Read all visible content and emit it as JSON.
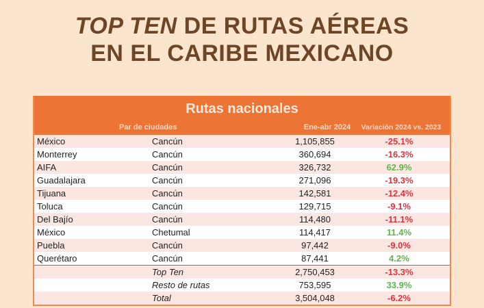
{
  "title": {
    "line1_italic": "TOP TEN",
    "line1_rest": " DE RUTAS AÉREAS",
    "line2": "EN EL CARIBE MEXICANO"
  },
  "table": {
    "heading": "Rutas nacionales",
    "columns": {
      "pair": "Par de ciudades",
      "period": "Ene-abr 2024",
      "variation": "Variación  2024 vs. 2023"
    },
    "colors": {
      "header": "#ec7434",
      "negative": "#e0323c",
      "positive": "#5fb548"
    },
    "rows": [
      {
        "origin": "México",
        "destination": "Cancún",
        "value": "1,105,855",
        "variation": "-25.1%"
      },
      {
        "origin": "Monterrey",
        "destination": "Cancún",
        "value": "360,694",
        "variation": "-16.3%"
      },
      {
        "origin": "AIFA",
        "destination": "Cancún",
        "value": "326,732",
        "variation": "62.9%"
      },
      {
        "origin": "Guadalajara",
        "destination": "Cancún",
        "value": "271,096",
        "variation": "-19.3%"
      },
      {
        "origin": "Tijuana",
        "destination": "Cancún",
        "value": "142,581",
        "variation": "-12.4%"
      },
      {
        "origin": "Toluca",
        "destination": "Cancún",
        "value": "129,715",
        "variation": "-9.1%"
      },
      {
        "origin": "Del Bajío",
        "destination": "Cancún",
        "value": "114,480",
        "variation": "-11.1%"
      },
      {
        "origin": "México",
        "destination": "Chetumal",
        "value": "114,417",
        "variation": "11.4%"
      },
      {
        "origin": "Puebla",
        "destination": "Cancún",
        "value": "97,442",
        "variation": "-9.0%"
      },
      {
        "origin": "Querétaro",
        "destination": "Cancún",
        "value": "87,441",
        "variation": "4.2%"
      }
    ],
    "totals": [
      {
        "label": "Top Ten",
        "value": "2,750,453",
        "variation": "-13.3%"
      },
      {
        "label": "Resto de rutas",
        "value": "753,595",
        "variation": "33.9%"
      },
      {
        "label": "Total",
        "value": "3,504,048",
        "variation": "-6.2%"
      }
    ]
  }
}
